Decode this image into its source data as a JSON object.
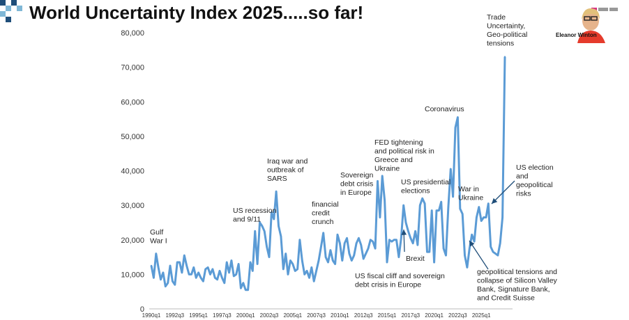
{
  "title": "World Uncertainty Index 2025.....so far!",
  "presenter": {
    "name": "Eleanor Winton"
  },
  "colors": {
    "line": "#5b9bd5",
    "arrow": "#1f4e79",
    "deco_dark": "#1f4e79",
    "deco_light": "#7fb7d6"
  },
  "chart_data": {
    "type": "line",
    "title": "",
    "xlabel": "",
    "ylabel": "",
    "ylim": [
      0,
      80000
    ],
    "yticks": [
      "0",
      "10,000",
      "20,000",
      "30,000",
      "40,000",
      "50,000",
      "60,000",
      "70,000",
      "80,000"
    ],
    "xtick_labels": [
      "1990q1",
      "1992q3",
      "1995q1",
      "1997q3",
      "2000q1",
      "2002q3",
      "2005q1",
      "2007q3",
      "2010q1",
      "2012q3",
      "2015q1",
      "2017q3",
      "2020q1",
      "2022q3",
      "2025q1"
    ],
    "x_start": "1990q1",
    "grid": false,
    "legend": "none",
    "series": [
      {
        "values": [
          12500,
          9000,
          16000,
          12000,
          8500,
          10500,
          6500,
          7500,
          12500,
          8000,
          7000,
          13500,
          13500,
          10500,
          15500,
          12500,
          10000,
          10000,
          12000,
          9000,
          10500,
          9000,
          8000,
          11500,
          12000,
          10000,
          11500,
          9000,
          8500,
          11000,
          9000,
          7500,
          13500,
          10500,
          14000,
          9500,
          10000,
          13000,
          6000,
          7500,
          5500,
          5500,
          13500,
          11000,
          22500,
          13000,
          25000,
          24000,
          22500,
          18000,
          15000,
          28000,
          26000,
          34000,
          24000,
          21000,
          11500,
          16000,
          10000,
          14000,
          13000,
          11000,
          11500,
          20000,
          14000,
          10000,
          11000,
          9000,
          12000,
          8000,
          11000,
          14000,
          18000,
          22000,
          15000,
          13500,
          17000,
          14000,
          13000,
          21500,
          19000,
          14000,
          19000,
          20500,
          16000,
          14000,
          15500,
          19000,
          20500,
          18500,
          14500,
          16000,
          17500,
          20000,
          19500,
          17500,
          37000,
          26500,
          38500,
          31500,
          13500,
          20000,
          19500,
          20000,
          20000,
          15000,
          20500,
          30000,
          25000,
          22500,
          20500,
          19000,
          22500,
          18500,
          30000,
          32000,
          30500,
          16500,
          16500,
          28500,
          13500,
          28500,
          28500,
          31000,
          17500,
          15500,
          29500,
          40500,
          32500,
          52500,
          55500,
          29000,
          27500,
          15500,
          12000,
          17500,
          21500,
          19500,
          26500,
          29500,
          25500,
          26500,
          26500,
          30500,
          18000,
          16500,
          16000,
          15500,
          19000,
          26500,
          73000
        ]
      }
    ],
    "annotations": [
      {
        "lines": [
          "Gulf",
          "War I"
        ]
      },
      {
        "lines": [
          "US recession",
          "and 9/11"
        ]
      },
      {
        "lines": [
          "Iraq war and",
          "outbreak of",
          "SARS"
        ]
      },
      {
        "lines": [
          "financial",
          "credit",
          "crunch"
        ]
      },
      {
        "lines": [
          "Sovereign",
          "debt crisis",
          "in Europe"
        ]
      },
      {
        "lines": [
          "FED tightening",
          "and political risk in",
          "Greece and",
          "Ukraine"
        ]
      },
      {
        "lines": [
          "US presidential",
          "elections"
        ]
      },
      {
        "lines": [
          "Coronavirus"
        ]
      },
      {
        "lines": [
          "War in",
          "Ukraine"
        ]
      },
      {
        "lines": [
          "Trade",
          "Uncertainty,",
          "Geo-political",
          "tensions"
        ]
      },
      {
        "lines": [
          "US election",
          "and",
          "geopolitical",
          "risks"
        ]
      },
      {
        "lines": [
          "Brexit"
        ]
      },
      {
        "lines": [
          "US fiscal cliff and sovereign",
          "debt crisis in Europe"
        ]
      },
      {
        "lines": [
          "geopolitical tensions and",
          "collapse of Silicon Valley",
          "Bank, Signature Bank,",
          "and Credit Suisse"
        ]
      }
    ]
  }
}
